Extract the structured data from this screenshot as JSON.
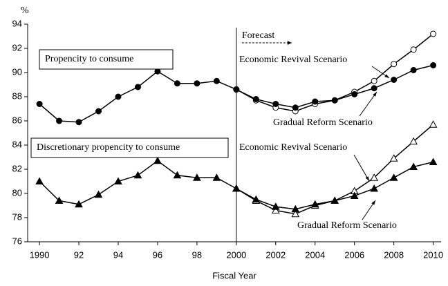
{
  "chart_data": {
    "type": "line",
    "y_unit": "%",
    "xlabel": "Fiscal Year",
    "x": [
      1990,
      1991,
      1992,
      1993,
      1994,
      1995,
      1996,
      1997,
      1998,
      1999,
      2000,
      2001,
      2002,
      2003,
      2004,
      2005,
      2006,
      2007,
      2008,
      2009,
      2010
    ],
    "xlim": [
      1989.4,
      2010.4
    ],
    "xticks": [
      1990,
      {
        "value": 1992,
        "label": "92"
      },
      {
        "value": 1994,
        "label": "94"
      },
      {
        "value": 1996,
        "label": "96"
      },
      {
        "value": 1998,
        "label": "98"
      },
      2000,
      2002,
      2004,
      2006,
      2008,
      2010
    ],
    "ylim": [
      76,
      94
    ],
    "yticks": [
      76,
      78,
      80,
      82,
      84,
      86,
      88,
      90,
      92,
      94
    ],
    "forecast_start": 2000,
    "forecast_label": "Forecast",
    "series": [
      {
        "name": "Propencity to consume",
        "color": "#000000",
        "marker": "circle",
        "filled": true,
        "values": [
          87.4,
          86.0,
          85.9,
          86.8,
          88.0,
          88.8,
          90.1,
          89.1,
          89.1,
          89.3,
          88.6,
          null,
          null,
          null,
          null,
          null,
          null,
          null,
          null,
          null,
          null
        ]
      },
      {
        "name": "Economic Revival Scenario",
        "color": "#000000",
        "marker": "circle",
        "filled": false,
        "values": [
          null,
          null,
          null,
          null,
          null,
          null,
          null,
          null,
          null,
          null,
          88.6,
          87.7,
          87.1,
          86.8,
          87.4,
          87.7,
          88.4,
          89.3,
          90.7,
          91.9,
          93.2
        ]
      },
      {
        "name": "Gradual Reform Scenario",
        "color": "#000000",
        "marker": "circle",
        "filled": true,
        "values": [
          null,
          null,
          null,
          null,
          null,
          null,
          null,
          null,
          null,
          null,
          88.6,
          87.8,
          87.4,
          87.1,
          87.6,
          87.7,
          88.2,
          88.7,
          89.4,
          90.2,
          90.6
        ]
      },
      {
        "name": "Discretionary propencity to consume",
        "color": "#000000",
        "marker": "triangle",
        "filled": true,
        "values": [
          81.0,
          79.4,
          79.1,
          79.9,
          81.0,
          81.5,
          82.7,
          81.5,
          81.3,
          81.3,
          80.4,
          null,
          null,
          null,
          null,
          null,
          null,
          null,
          null,
          null,
          null
        ]
      },
      {
        "name": "Economic Revival Scenario",
        "color": "#000000",
        "marker": "triangle",
        "filled": false,
        "values": [
          null,
          null,
          null,
          null,
          null,
          null,
          null,
          null,
          null,
          null,
          80.4,
          79.4,
          78.6,
          78.3,
          79.0,
          79.4,
          80.2,
          81.3,
          82.9,
          84.3,
          85.7
        ]
      },
      {
        "name": "Gradual Reform Scenario",
        "color": "#000000",
        "marker": "triangle",
        "filled": true,
        "values": [
          null,
          null,
          null,
          null,
          null,
          null,
          null,
          null,
          null,
          null,
          80.4,
          79.5,
          78.9,
          78.7,
          79.1,
          79.4,
          79.8,
          80.4,
          81.3,
          82.2,
          82.6
        ]
      }
    ]
  }
}
